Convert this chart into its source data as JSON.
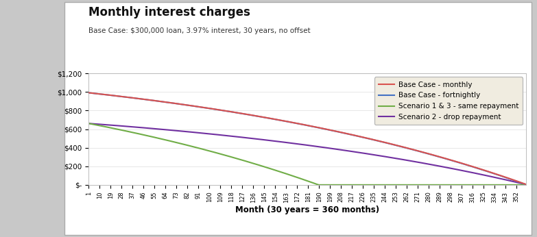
{
  "title": "Monthly interest charges",
  "subtitle": "Base Case: $300,000 loan, 3.97% interest, 30 years, no offset",
  "xlabel": "Month (30 years = 360 months)",
  "ylim": [
    0,
    1200
  ],
  "ytick_values": [
    0,
    200,
    400,
    600,
    800,
    1000,
    1200
  ],
  "ytick_labels": [
    "$-",
    "$200",
    "$400",
    "$600",
    "$800",
    "$1,000",
    "$1,200"
  ],
  "loan": 300000,
  "annual_rate": 0.0397,
  "months": 360,
  "xtick_values": [
    1,
    10,
    19,
    28,
    37,
    46,
    55,
    64,
    73,
    82,
    91,
    100,
    109,
    118,
    127,
    136,
    145,
    154,
    163,
    172,
    181,
    190,
    199,
    208,
    217,
    226,
    235,
    244,
    253,
    262,
    271,
    280,
    289,
    298,
    307,
    316,
    325,
    334,
    343,
    352
  ],
  "colors": {
    "base_monthly": "#d9534f",
    "base_fortnightly": "#4472c4",
    "scenario13": "#70ad47",
    "scenario2": "#7030a0"
  },
  "legend_bg": "#f0ece0",
  "legend_labels": [
    "Base Case - monthly",
    "Base Case - fortnightly",
    "Scenario 1 & 3 - same repayment",
    "Scenario 2 - drop repayment"
  ],
  "outer_bg": "#c8c8c8",
  "box_bg": "#ffffff"
}
